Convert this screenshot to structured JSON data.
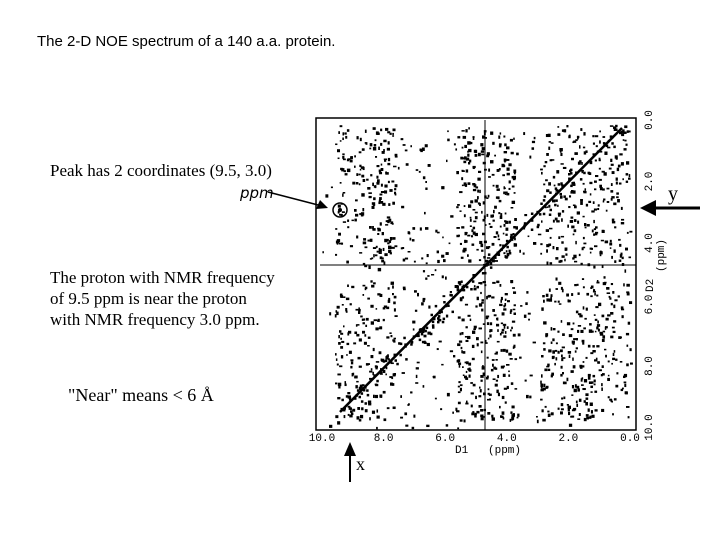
{
  "title": "The 2-D NOE spectrum of a 140 a.a. protein.",
  "annotations": {
    "peak": "Peak has 2 coordinates (9.5, 3.0)",
    "ppm_note": "ppm",
    "explanation": [
      "The proton with NMR frequency",
      "of 9.5 ppm is near the proton",
      "with NMR frequency 3.0 ppm."
    ],
    "near": "\"Near\" means  < 6 Å",
    "y_arrow": "y",
    "x_arrow": "x"
  },
  "x_axis": {
    "ticks": [
      "10.0",
      "8.0",
      "6.0",
      "4.0",
      "2.0",
      "0.0"
    ],
    "name": "D1",
    "unit": "(ppm)"
  },
  "y_axis": {
    "ticks": [
      "0.0",
      "2.0",
      "4.0",
      "6.0",
      "8.0",
      "10.0"
    ],
    "name": "D2",
    "unit": "(ppm)"
  }
}
